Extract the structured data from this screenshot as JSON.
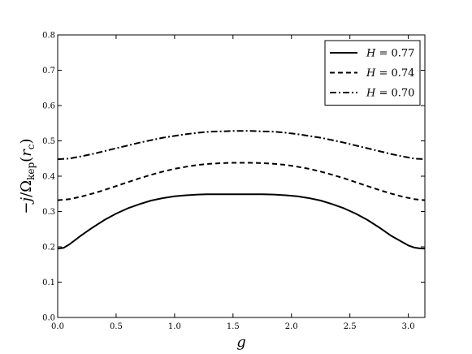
{
  "chart_data": {
    "type": "line",
    "xlabel": "g",
    "ylabel_parts": {
      "prefix": "−",
      "dot_var": "j",
      "mid": "/Ω",
      "sub": "kep",
      "open": "(",
      "r": "r",
      "rsub": "c",
      "close": ")"
    },
    "xlim": [
      0,
      3.1416
    ],
    "ylim": [
      0,
      0.8
    ],
    "x_ticks": [
      "0.0",
      "0.5",
      "1.0",
      "1.5",
      "2.0",
      "2.5",
      "3.0"
    ],
    "y_ticks": [
      "0.0",
      "0.1",
      "0.2",
      "0.3",
      "0.4",
      "0.5",
      "0.6",
      "0.7",
      "0.8"
    ],
    "grid": false,
    "legend_position": "top-right",
    "series": [
      {
        "name": "H = 0.77",
        "label_var": "H",
        "label_value": "0.77",
        "style": "solid",
        "x": [
          0.0,
          0.05,
          0.1,
          0.2,
          0.3,
          0.4,
          0.5,
          0.6,
          0.7,
          0.8,
          0.9,
          1.0,
          1.1,
          1.2,
          1.3,
          1.4,
          1.5,
          1.5708,
          1.65,
          1.75,
          1.85,
          1.95,
          2.05,
          2.15,
          2.25,
          2.35,
          2.45,
          2.55,
          2.65,
          2.75,
          2.85,
          2.95,
          3.0,
          3.05,
          3.09,
          3.1416
        ],
        "y": [
          0.195,
          0.197,
          0.207,
          0.232,
          0.255,
          0.276,
          0.294,
          0.309,
          0.321,
          0.331,
          0.338,
          0.343,
          0.346,
          0.348,
          0.349,
          0.349,
          0.349,
          0.349,
          0.349,
          0.349,
          0.348,
          0.346,
          0.343,
          0.338,
          0.331,
          0.321,
          0.309,
          0.294,
          0.276,
          0.255,
          0.232,
          0.213,
          0.204,
          0.198,
          0.196,
          0.195
        ]
      },
      {
        "name": "H = 0.74",
        "label_var": "H",
        "label_value": "0.74",
        "style": "dashed",
        "x": [
          0.0,
          0.1,
          0.2,
          0.3,
          0.4,
          0.5,
          0.6,
          0.7,
          0.8,
          0.9,
          1.0,
          1.1,
          1.2,
          1.3,
          1.4,
          1.5,
          1.5708,
          1.65,
          1.75,
          1.85,
          1.95,
          2.05,
          2.15,
          2.25,
          2.35,
          2.45,
          2.55,
          2.65,
          2.75,
          2.85,
          2.95,
          3.05,
          3.1416
        ],
        "y": [
          0.332,
          0.335,
          0.342,
          0.351,
          0.361,
          0.372,
          0.383,
          0.394,
          0.404,
          0.413,
          0.421,
          0.427,
          0.432,
          0.435,
          0.437,
          0.438,
          0.438,
          0.438,
          0.437,
          0.435,
          0.432,
          0.427,
          0.421,
          0.413,
          0.404,
          0.394,
          0.383,
          0.372,
          0.361,
          0.351,
          0.342,
          0.335,
          0.332
        ]
      },
      {
        "name": "H = 0.70",
        "label_var": "H",
        "label_value": "0.70",
        "style": "dashdot",
        "x": [
          0.0,
          0.1,
          0.2,
          0.3,
          0.4,
          0.5,
          0.6,
          0.7,
          0.8,
          0.9,
          1.0,
          1.1,
          1.2,
          1.3,
          1.4,
          1.5,
          1.5708,
          1.65,
          1.75,
          1.85,
          1.95,
          2.05,
          2.15,
          2.25,
          2.35,
          2.45,
          2.55,
          2.65,
          2.75,
          2.85,
          2.95,
          3.05,
          3.1416
        ],
        "y": [
          0.448,
          0.45,
          0.456,
          0.463,
          0.471,
          0.479,
          0.487,
          0.495,
          0.502,
          0.509,
          0.514,
          0.519,
          0.523,
          0.526,
          0.527,
          0.528,
          0.528,
          0.528,
          0.527,
          0.526,
          0.523,
          0.519,
          0.514,
          0.509,
          0.502,
          0.495,
          0.487,
          0.479,
          0.471,
          0.463,
          0.456,
          0.45,
          0.448
        ]
      }
    ]
  }
}
